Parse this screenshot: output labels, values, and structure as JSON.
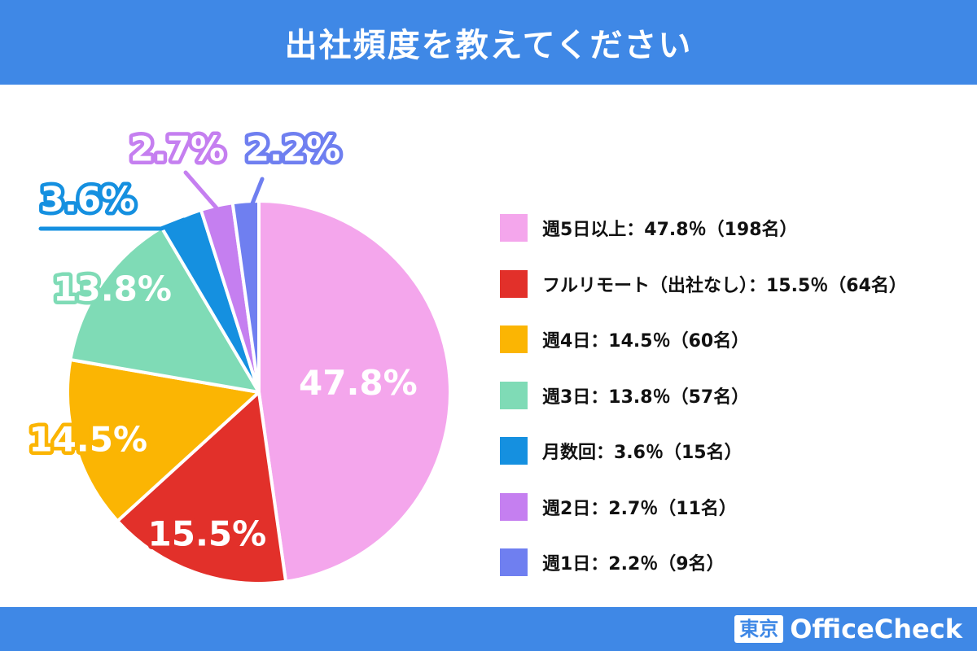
{
  "header": {
    "title": "出社頻度を教えてください"
  },
  "brand": {
    "box": "東京",
    "name": "OfficeCheck"
  },
  "chart_data": {
    "type": "pie",
    "title": "出社頻度を教えてください",
    "slices": [
      {
        "name": "週5日以上",
        "value": 47.8,
        "count": 198,
        "color": "#f4a6ec",
        "pct_label": "47.8%",
        "legend_label": "週5日以上：47.8％（198名）"
      },
      {
        "name": "フルリモート（出社なし）",
        "value": 15.5,
        "count": 64,
        "color": "#e2302a",
        "pct_label": "15.5%",
        "legend_label": "フルリモート（出社なし）：15.5％（64名）"
      },
      {
        "name": "週4日",
        "value": 14.5,
        "count": 60,
        "color": "#fbb503",
        "pct_label": "14.5%",
        "legend_label": "週4日：14.5％（60名）"
      },
      {
        "name": "週3日",
        "value": 13.8,
        "count": 57,
        "color": "#7fdbb6",
        "pct_label": "13.8%",
        "legend_label": "週3日：13.8％（57名）"
      },
      {
        "name": "月数回",
        "value": 3.6,
        "count": 15,
        "color": "#1590e0",
        "pct_label": "3.6%",
        "legend_label": "月数回：3.6％（15名）"
      },
      {
        "name": "週2日",
        "value": 2.7,
        "count": 11,
        "color": "#c57ff0",
        "pct_label": "2.7%",
        "legend_label": "週2日：2.7％（11名）"
      },
      {
        "name": "週1日",
        "value": 2.2,
        "count": 9,
        "color": "#6f7ff0",
        "pct_label": "2.2%",
        "legend_label": "週1日：2.2％（9名）"
      }
    ],
    "legend_position": "right"
  }
}
